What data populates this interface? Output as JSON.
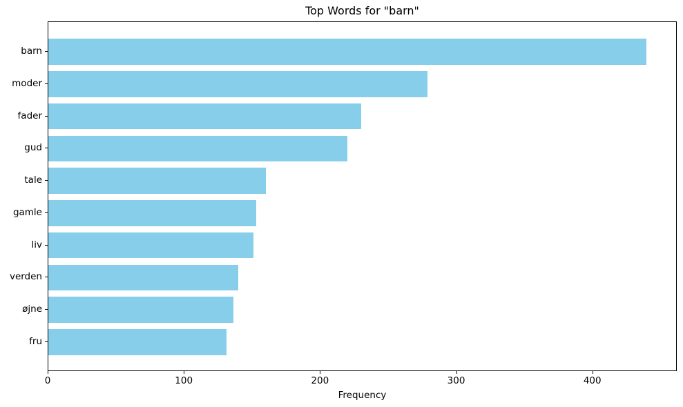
{
  "chart_data": {
    "type": "bar",
    "orientation": "horizontal",
    "title": "Top Words for \"barn\"",
    "xlabel": "Frequency",
    "ylabel": "",
    "categories": [
      "barn",
      "moder",
      "fader",
      "gud",
      "tale",
      "gamle",
      "liv",
      "verden",
      "øjne",
      "fru"
    ],
    "values": [
      440,
      279,
      230,
      220,
      160,
      153,
      151,
      140,
      136,
      131
    ],
    "xticks": [
      0,
      100,
      200,
      300,
      400
    ],
    "xlim": [
      0,
      462
    ],
    "grid": false,
    "legend": null,
    "bar_color": "#87CEEB",
    "background_color": "#ffffff",
    "spine_color": "#000000",
    "text_color": "#000000"
  }
}
